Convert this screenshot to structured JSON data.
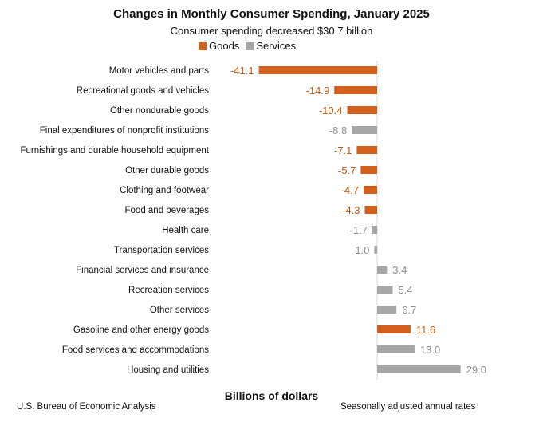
{
  "chart_data": {
    "type": "bar",
    "orientation": "horizontal",
    "title": "Changes in Monthly Consumer Spending, January 2025",
    "subtitle": "Consumer spending decreased $30.7 billion",
    "xlabel": "Billions of dollars",
    "source": "U.S. Bureau of Economic Analysis",
    "note": "Seasonally adjusted annual rates",
    "legend": [
      {
        "name": "Goods",
        "color": "#d35f1d"
      },
      {
        "name": "Services",
        "color": "#a6a6a6"
      }
    ],
    "legend_position": "top",
    "grid": false,
    "xlim": [
      -43,
      30
    ],
    "categories": [
      "Motor vehicles and parts",
      "Recreational goods and vehicles",
      "Other nondurable goods",
      "Final expenditures of nonprofit institutions",
      "Furnishings and durable household equipment",
      "Other durable goods",
      "Clothing and footwear",
      "Food and beverages",
      "Health care",
      "Transportation services",
      "Financial services and insurance",
      "Recreation services",
      "Other services",
      "Gasoline and other energy goods",
      "Food services and accommodations",
      "Housing and utilities"
    ],
    "values": [
      -41.1,
      -14.9,
      -10.4,
      -8.8,
      -7.1,
      -5.7,
      -4.7,
      -4.3,
      -1.7,
      -1.0,
      3.4,
      5.4,
      6.7,
      11.6,
      13.0,
      29.0
    ],
    "value_labels": [
      "-41.1",
      "-14.9",
      "-10.4",
      "-8.8",
      "-7.1",
      "-5.7",
      "-4.7",
      "-4.3",
      "-1.7",
      "-1.0",
      "3.4",
      "5.4",
      "6.7",
      "11.6",
      "13.0",
      "29.0"
    ],
    "group": [
      "Goods",
      "Goods",
      "Goods",
      "Services",
      "Goods",
      "Goods",
      "Goods",
      "Goods",
      "Services",
      "Services",
      "Services",
      "Services",
      "Services",
      "Goods",
      "Services",
      "Services"
    ]
  }
}
